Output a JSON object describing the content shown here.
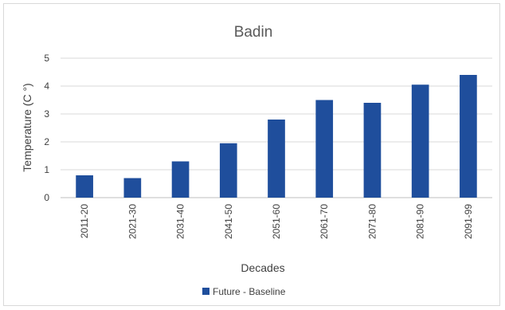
{
  "chart_data": {
    "type": "bar",
    "title": "Badin",
    "xlabel": "Decades",
    "ylabel": "Temperature (C °)",
    "ylim": [
      0,
      5
    ],
    "yticks": [
      0,
      1,
      2,
      3,
      4,
      5
    ],
    "grid": true,
    "legend_position": "bottom",
    "categories": [
      "2011-20",
      "2021-30",
      "2031-40",
      "2041-50",
      "2051-60",
      "2061-70",
      "2071-80",
      "2081-90",
      "2091-99"
    ],
    "series": [
      {
        "name": "Future - Baseline",
        "color": "#1f4e9c",
        "values": [
          0.8,
          0.7,
          1.3,
          1.95,
          2.8,
          3.5,
          3.4,
          4.05,
          4.4
        ]
      }
    ]
  }
}
